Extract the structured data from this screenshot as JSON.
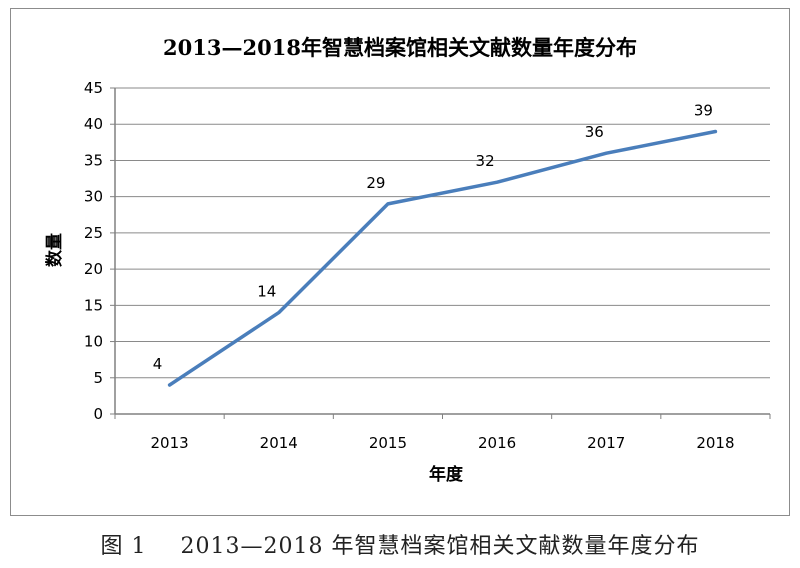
{
  "chart_data": {
    "type": "line",
    "title": "2013—2018年智慧档案馆相关文献数量年度分布",
    "xlabel": "年度",
    "ylabel": "数量",
    "categories": [
      "2013",
      "2014",
      "2015",
      "2016",
      "2017",
      "2018"
    ],
    "series": [
      {
        "values": [
          4,
          14,
          29,
          32,
          36,
          39
        ],
        "color": "#4a7ebb"
      }
    ],
    "ylim": [
      0,
      45
    ],
    "yticks": [
      0,
      5,
      10,
      15,
      20,
      25,
      30,
      35,
      40,
      45
    ],
    "grid": true,
    "legend": "none",
    "data_labels": true
  },
  "caption": {
    "label": "图 1",
    "text": "2013—2018 年智慧档案馆相关文献数量年度分布"
  }
}
